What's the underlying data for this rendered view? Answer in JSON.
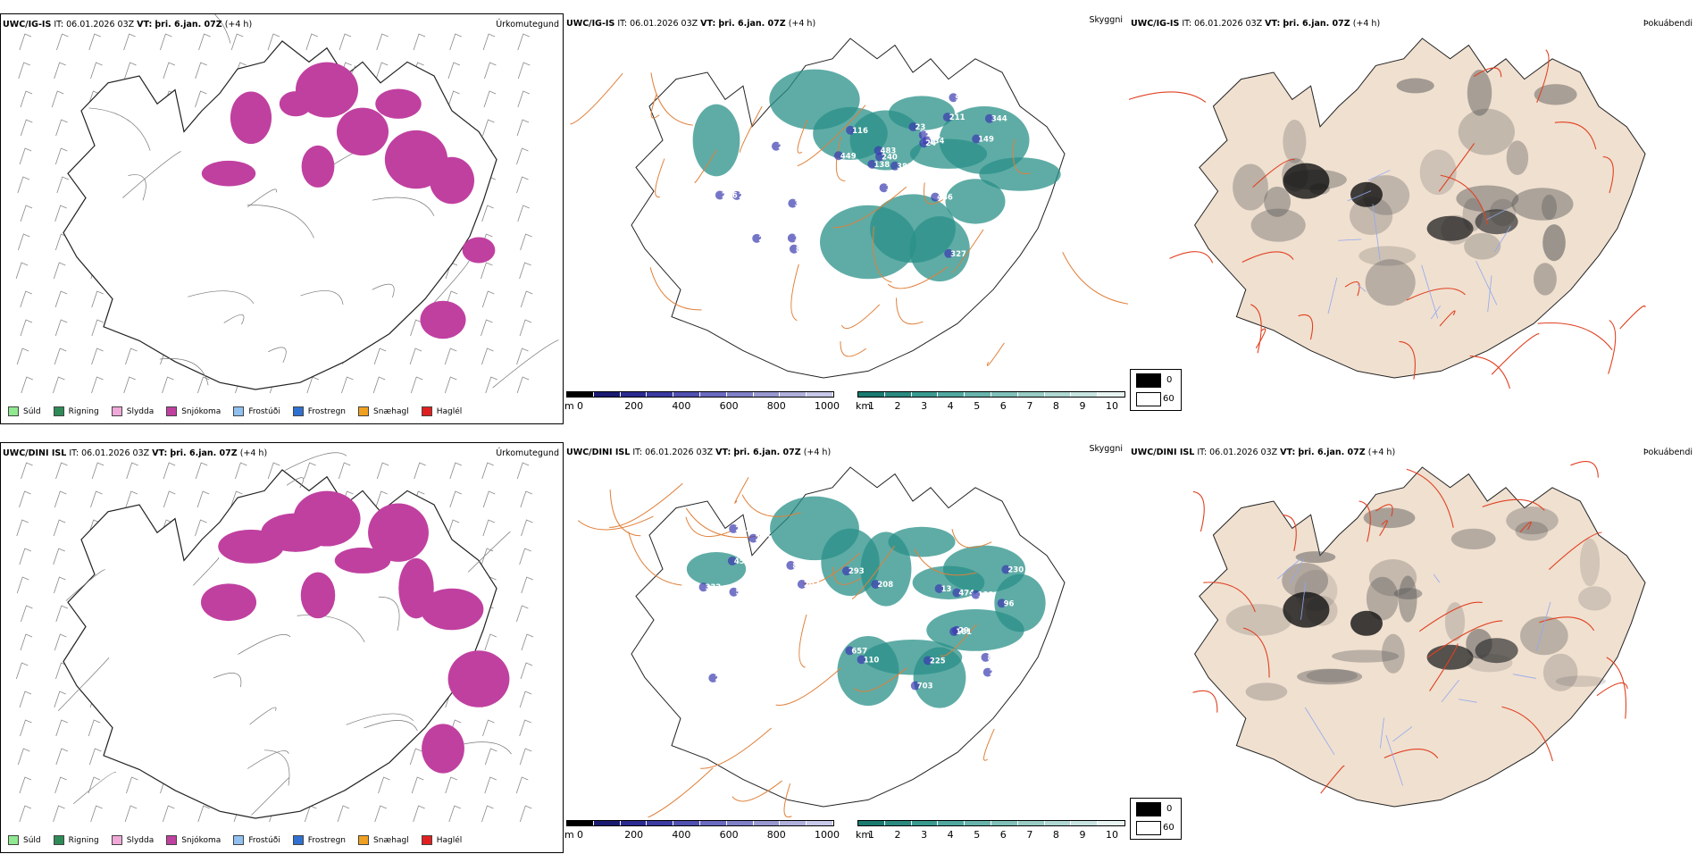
{
  "rows": [
    {
      "model": "UWC/IG-IS",
      "init_label": "IT:",
      "init_time": "06.01.2026 03Z",
      "valid_label": "VT:",
      "valid_time": "þri. 6.jan. 07Z",
      "lead": "(+4 h)",
      "fields": [
        "Úrkomutegund",
        "Skyggni",
        "Þokuábendi"
      ],
      "ceiling_labels": [
        "149",
        "449",
        "383",
        "486",
        "240",
        "231",
        "134",
        "344",
        "327",
        "208",
        "984",
        "213",
        "852",
        "483",
        "297",
        "14",
        "138",
        "308",
        "136",
        "236",
        "23",
        "211",
        "116",
        "24"
      ],
      "precip_count": "main"
    },
    {
      "model": "UWC/DINI ISL",
      "init_label": "IT:",
      "init_time": "06.01.2026 03Z",
      "valid_label": "VT:",
      "valid_time": "þri. 6.jan. 07Z",
      "lead": "(+4 h)",
      "fields": [
        "Úrkomutegund",
        "Skyggni",
        "Þokuábendi"
      ],
      "ceiling_labels": [
        "230",
        "202",
        "207",
        "332",
        "293",
        "817",
        "845",
        "474",
        "290",
        "458",
        "657",
        "703",
        "29",
        "161",
        "208",
        "225",
        "551",
        "139",
        "202",
        "13",
        "96",
        "110",
        "24"
      ],
      "precip_count": "main"
    }
  ],
  "precip_legend": [
    {
      "label": "Súld",
      "color": "#90e890"
    },
    {
      "label": "Rigning",
      "color": "#2e8b57"
    },
    {
      "label": "Slydda",
      "color": "#f0a8d8"
    },
    {
      "label": "Snjókoma",
      "color": "#c040a0"
    },
    {
      "label": "Frostúði",
      "color": "#90c0f0"
    },
    {
      "label": "Frostregn",
      "color": "#3070d0"
    },
    {
      "label": "Snæhagl",
      "color": "#f0a020"
    },
    {
      "label": "Haglél",
      "color": "#e02020"
    }
  ],
  "ceiling_bar": {
    "unit": "m",
    "ticks": [
      "0",
      "200",
      "400",
      "600",
      "800",
      "1000"
    ],
    "colors": [
      "#000000",
      "#1a1a70",
      "#2a2a90",
      "#3a3aa0",
      "#5050b0",
      "#6a6ac0",
      "#8080c8",
      "#9898d0",
      "#b0b0dc",
      "#c8c8e8"
    ]
  },
  "visibility_bar": {
    "unit": "km",
    "ticks": [
      "1",
      "2",
      "3",
      "4",
      "5",
      "6",
      "7",
      "8",
      "9",
      "10"
    ],
    "colors": [
      "#1a7a70",
      "#2a8a80",
      "#3a9a90",
      "#50a8a0",
      "#68b4ac",
      "#80c0b8",
      "#98ccc4",
      "#b0d8d2",
      "#c8e4e0",
      "#e8f4f2"
    ]
  },
  "fog_legend": {
    "high": "0",
    "low": "60"
  },
  "colors": {
    "snow": "#c040a0",
    "coast": "#222222",
    "roads": "#e0803a",
    "visibility": "#2a9088",
    "ceiling": "#3a3ab0",
    "land": "#f0e0d0",
    "fogroad": "#e04020"
  }
}
